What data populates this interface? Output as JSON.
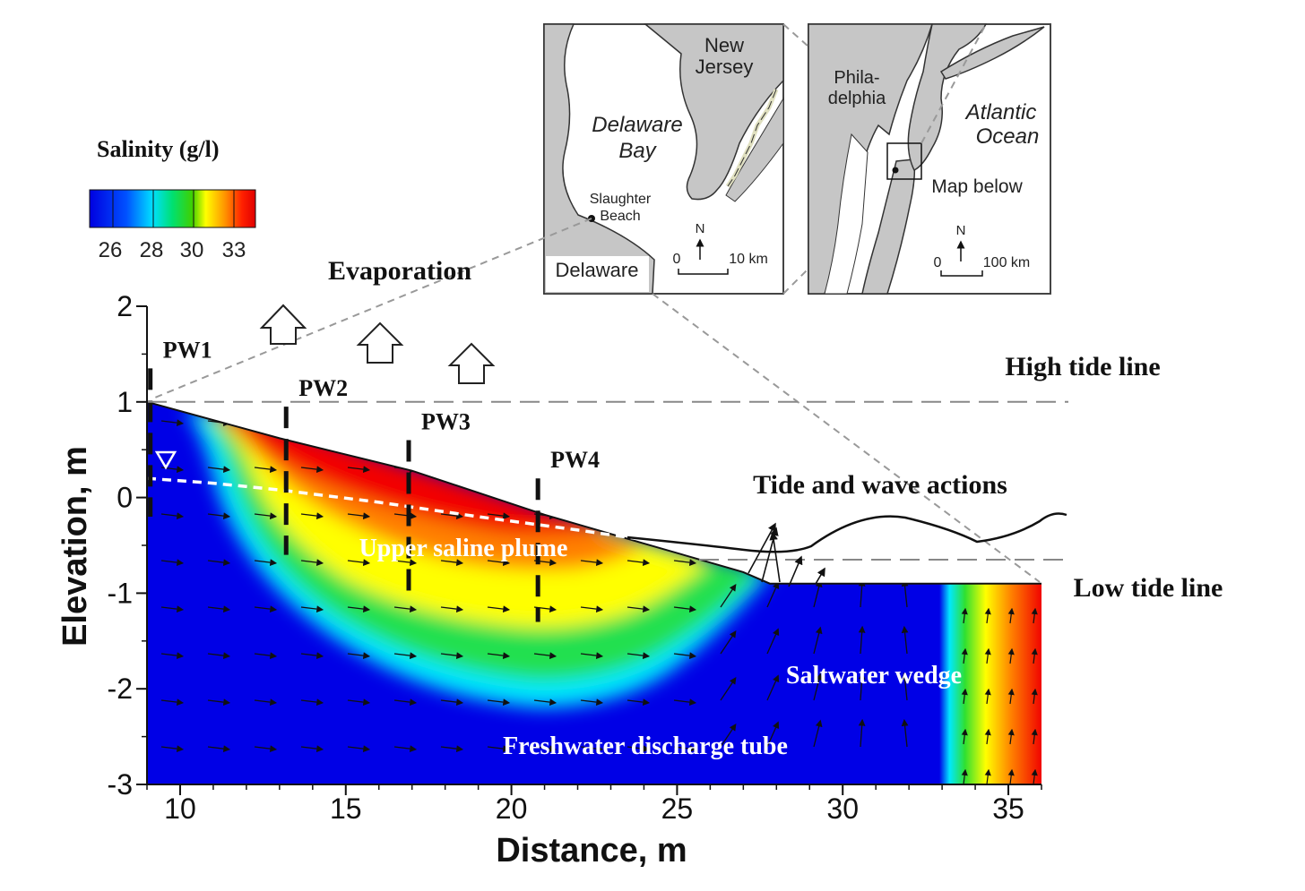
{
  "colors": {
    "salinity_stops": [
      "#0000e8",
      "#0070ff",
      "#00e8ff",
      "#20e060",
      "#30d020",
      "#ffff00",
      "#ff8000",
      "#f00000"
    ],
    "inset_land": "#c6c6c6",
    "inset_water": "#ffffff",
    "ridge": "#e0e0c0"
  },
  "legend": {
    "title": "Salinity (g/l)",
    "ticks": [
      "26",
      "28",
      "30",
      "33"
    ]
  },
  "labels": {
    "evaporation": "Evaporation",
    "high_tide": "High tide line",
    "low_tide": "Low tide line",
    "tide_wave": "Tide and wave actions",
    "upper_plume": "Upper saline plume",
    "saltwater_wedge": "Saltwater wedge",
    "freshwater_tube": "Freshwater discharge tube"
  },
  "inset_left": {
    "new_jersey": [
      "New",
      "Jersey"
    ],
    "delaware_bay": [
      "Delaware",
      "Bay"
    ],
    "slaughter_beach": [
      "Slaughter",
      "Beach"
    ],
    "delaware": "Delaware",
    "north": "N",
    "scale_zero": "0",
    "scale_label": "10 km"
  },
  "inset_right": {
    "philadelphia": [
      "Phila-",
      "delphia"
    ],
    "atlantic": [
      "Atlantic",
      "Ocean"
    ],
    "map_below": "Map below",
    "north": "N",
    "scale_zero": "0",
    "scale_label": "100 km"
  },
  "chart_data": {
    "type": "heatmap",
    "xlabel": "Distance, m",
    "ylabel": "Elevation, m",
    "xlim": [
      9,
      36
    ],
    "ylim": [
      -3,
      2
    ],
    "xticks": [
      10,
      15,
      20,
      25,
      30,
      35
    ],
    "yticks": [
      -3,
      -2,
      -1,
      0,
      1,
      2
    ],
    "high_tide_elevation": 1.0,
    "low_tide_elevation": -0.65,
    "beach_surface": {
      "x": [
        9.0,
        13.0,
        17.0,
        21.0,
        24.0,
        27.0,
        27.8,
        36.0
      ],
      "y": [
        1.0,
        0.62,
        0.28,
        -0.18,
        -0.48,
        -0.78,
        -0.9,
        -0.9
      ]
    },
    "water_table": {
      "x": [
        9.0,
        11.0,
        13.0,
        16.0,
        19.0,
        22.0,
        24.0
      ],
      "y": [
        0.2,
        0.15,
        0.08,
        -0.05,
        -0.2,
        -0.34,
        -0.44
      ]
    },
    "wells": [
      {
        "name": "PW1",
        "x": 9.1,
        "top": 1.35,
        "bottom": -0.2
      },
      {
        "name": "PW2",
        "x": 13.2,
        "top": 0.95,
        "bottom": -0.6
      },
      {
        "name": "PW3",
        "x": 16.9,
        "top": 0.6,
        "bottom": -0.98
      },
      {
        "name": "PW4",
        "x": 20.8,
        "top": 0.2,
        "bottom": -1.3
      }
    ],
    "salinity_scale": [
      26,
      28,
      30,
      33
    ]
  }
}
